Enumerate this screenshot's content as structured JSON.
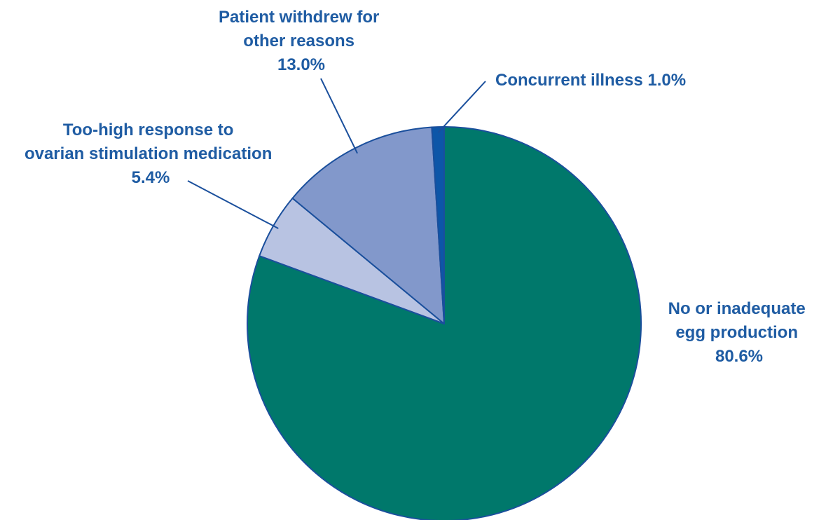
{
  "chart_data": {
    "type": "pie",
    "start_angle_deg": 0,
    "direction": "clockwise",
    "colors": {
      "slice_stroke": "#1a4f9c",
      "label_text": "#1f5ca3",
      "leader_line": "#1a4f9c"
    },
    "slices": [
      {
        "label_lines": [
          "No or inadequate",
          "egg production",
          "80.6%"
        ],
        "value": 80.6,
        "color": "#00786b"
      },
      {
        "label_lines": [
          "Too-high response to",
          "ovarian stimulation medication",
          "5.4%"
        ],
        "value": 5.4,
        "color": "#b8c3e2"
      },
      {
        "label_lines": [
          "Patient withdrew for",
          "other reasons",
          "13.0%"
        ],
        "value": 13.0,
        "color": "#8298cb"
      },
      {
        "label_lines": [
          "Concurrent illness 1.0%"
        ],
        "value": 1.0,
        "color": "#0d56a8"
      }
    ]
  }
}
